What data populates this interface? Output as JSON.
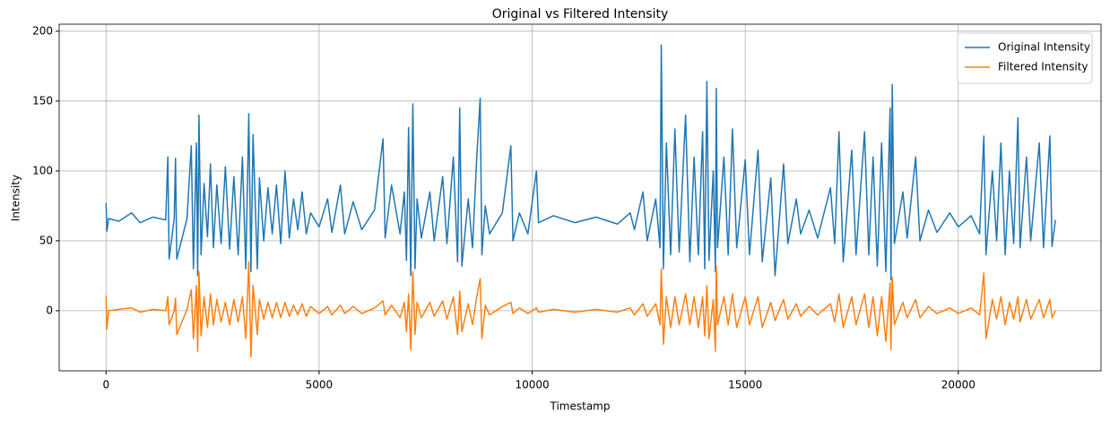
{
  "chart_data": {
    "type": "line",
    "title": "Original vs Filtered Intensity",
    "x_label": "Timestamp",
    "y_label": "Intensity",
    "x": [
      0,
      20,
      60,
      300,
      600,
      800,
      1100,
      1400,
      1450,
      1480,
      1600,
      1630,
      1660,
      1900,
      2000,
      2050,
      2120,
      2150,
      2180,
      2230,
      2300,
      2380,
      2450,
      2520,
      2600,
      2700,
      2800,
      2900,
      3000,
      3100,
      3200,
      3280,
      3350,
      3400,
      3450,
      3550,
      3600,
      3700,
      3800,
      3900,
      4000,
      4100,
      4200,
      4300,
      4400,
      4500,
      4600,
      4700,
      4800,
      5000,
      5200,
      5300,
      5500,
      5600,
      5800,
      6000,
      6300,
      6500,
      6550,
      6700,
      6900,
      7000,
      7050,
      7100,
      7150,
      7200,
      7250,
      7300,
      7400,
      7600,
      7700,
      7900,
      8000,
      8150,
      8250,
      8300,
      8350,
      8500,
      8600,
      8700,
      8780,
      8820,
      8900,
      9000,
      9300,
      9500,
      9550,
      9700,
      9900,
      10100,
      10150,
      10500,
      11000,
      11500,
      12000,
      12300,
      12400,
      12600,
      12700,
      12900,
      13000,
      13030,
      13080,
      13150,
      13250,
      13350,
      13450,
      13600,
      13700,
      13800,
      13900,
      14000,
      14050,
      14100,
      14150,
      14250,
      14300,
      14320,
      14350,
      14500,
      14600,
      14700,
      14800,
      15000,
      15100,
      15300,
      15400,
      15600,
      15700,
      15900,
      16000,
      16200,
      16300,
      16500,
      16700,
      17000,
      17100,
      17200,
      17300,
      17500,
      17600,
      17800,
      17900,
      18000,
      18100,
      18200,
      18300,
      18400,
      18420,
      18450,
      18500,
      18700,
      18800,
      19000,
      19100,
      19300,
      19500,
      19800,
      20000,
      20300,
      20500,
      20600,
      20650,
      20800,
      20900,
      21000,
      21100,
      21200,
      21300,
      21400,
      21450,
      21600,
      21700,
      21900,
      22000,
      22150,
      22200,
      22280
    ],
    "series": [
      {
        "name": "Original Intensity",
        "color": "#1f77b4",
        "values": [
          77,
          57,
          66,
          64,
          70,
          63,
          67,
          65,
          110,
          37,
          66,
          109,
          37,
          66,
          118,
          30,
          120,
          25,
          140,
          40,
          91,
          53,
          105,
          45,
          90,
          48,
          103,
          44,
          96,
          40,
          110,
          30,
          141,
          28,
          126,
          30,
          95,
          50,
          88,
          55,
          90,
          48,
          100,
          52,
          80,
          58,
          85,
          55,
          70,
          60,
          80,
          56,
          90,
          55,
          78,
          58,
          72,
          123,
          52,
          90,
          55,
          85,
          36,
          131,
          25,
          148,
          30,
          80,
          52,
          85,
          50,
          96,
          48,
          110,
          35,
          145,
          32,
          80,
          45,
          110,
          152,
          40,
          75,
          55,
          70,
          118,
          50,
          70,
          55,
          100,
          63,
          68,
          63,
          67,
          62,
          70,
          58,
          85,
          50,
          80,
          45,
          190,
          30,
          120,
          40,
          130,
          42,
          140,
          35,
          110,
          40,
          128,
          30,
          164,
          36,
          100,
          28,
          159,
          45,
          110,
          40,
          130,
          45,
          108,
          40,
          115,
          35,
          95,
          25,
          105,
          48,
          80,
          55,
          72,
          52,
          88,
          48,
          128,
          35,
          115,
          40,
          128,
          40,
          110,
          32,
          120,
          28,
          145,
          22,
          162,
          48,
          85,
          52,
          110,
          50,
          72,
          56,
          70,
          60,
          68,
          55,
          125,
          40,
          100,
          50,
          120,
          40,
          100,
          48,
          138,
          45,
          110,
          50,
          120,
          45,
          125,
          46,
          65
        ]
      },
      {
        "name": "Filtered Intensity",
        "color": "#ff7f0e",
        "values": [
          11,
          -13,
          0,
          1,
          2,
          -1,
          1,
          0,
          10,
          -10,
          0,
          9,
          -17,
          1,
          15,
          -20,
          18,
          -29,
          28,
          -18,
          10,
          -12,
          12,
          -10,
          8,
          -8,
          6,
          -10,
          8,
          -8,
          10,
          -20,
          35,
          -33,
          18,
          -17,
          8,
          -6,
          6,
          -5,
          6,
          -5,
          6,
          -4,
          4,
          -3,
          5,
          -4,
          3,
          -2,
          3,
          -3,
          4,
          -2,
          3,
          -2,
          2,
          7,
          -3,
          4,
          -5,
          6,
          -15,
          12,
          -28,
          28,
          -17,
          6,
          -5,
          6,
          -4,
          7,
          -6,
          10,
          -17,
          14,
          -15,
          5,
          -10,
          10,
          23,
          -20,
          4,
          -3,
          3,
          6,
          -2,
          2,
          -2,
          2,
          -1,
          1,
          -1,
          1,
          -1,
          2,
          -3,
          5,
          -4,
          5,
          -10,
          30,
          -24,
          10,
          -12,
          10,
          -10,
          12,
          -10,
          10,
          -12,
          10,
          -18,
          18,
          -20,
          8,
          -29,
          32,
          -10,
          10,
          -10,
          12,
          -12,
          10,
          -10,
          10,
          -12,
          6,
          -7,
          8,
          -6,
          5,
          -4,
          3,
          -3,
          5,
          -8,
          12,
          -12,
          10,
          -10,
          12,
          -12,
          10,
          -18,
          10,
          -22,
          20,
          -28,
          24,
          -10,
          6,
          -5,
          8,
          -5,
          3,
          -2,
          2,
          -2,
          2,
          -3,
          27,
          -20,
          8,
          -6,
          10,
          -10,
          6,
          -6,
          10,
          -8,
          8,
          -6,
          8,
          -5,
          8,
          -5,
          0
        ]
      }
    ],
    "xlim": [
      -1100,
      23350
    ],
    "ylim": [
      -43,
      205
    ],
    "xticks": [
      0,
      5000,
      10000,
      15000,
      20000
    ],
    "yticks": [
      0,
      50,
      100,
      150,
      200
    ],
    "grid": true,
    "legend": "upper right"
  }
}
